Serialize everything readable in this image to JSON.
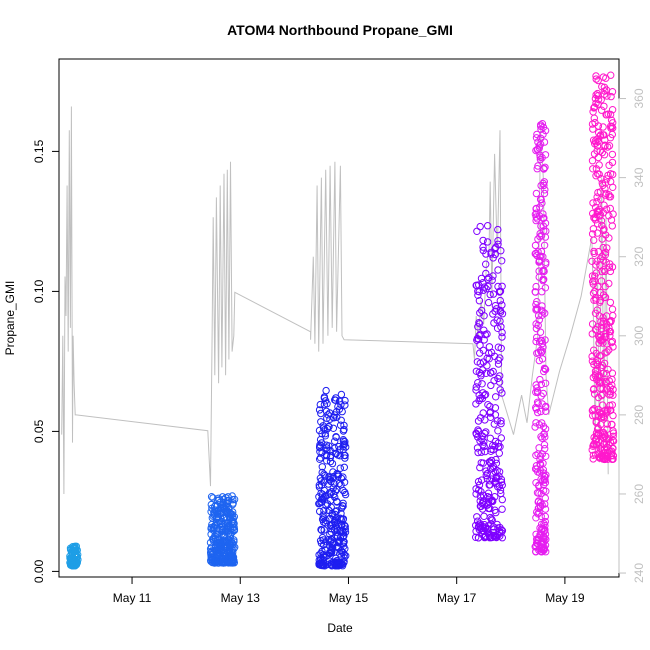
{
  "chart_data": {
    "type": "scatter",
    "title": "ATOM4 Northbound Propane_GMI",
    "xlabel": "Date",
    "ylabel": "Propane_GMI",
    "x_axis": {
      "ticks": [
        {
          "value": 11,
          "label": "May 11"
        },
        {
          "value": 13,
          "label": "May 13"
        },
        {
          "value": 15,
          "label": "May 15"
        },
        {
          "value": 17,
          "label": "May 17"
        },
        {
          "value": 19,
          "label": "May 19"
        }
      ],
      "range": [
        9.65,
        20.0
      ]
    },
    "y_left": {
      "ticks": [
        {
          "value": 0.0,
          "label": "0.00"
        },
        {
          "value": 0.05,
          "label": "0.05"
        },
        {
          "value": 0.1,
          "label": "0.10"
        },
        {
          "value": 0.15,
          "label": "0.15"
        }
      ],
      "range": [
        -0.002,
        0.183
      ]
    },
    "y_right": {
      "ticks": [
        {
          "value": 240,
          "label": "240"
        },
        {
          "value": 260,
          "label": "260"
        },
        {
          "value": 280,
          "label": "280"
        },
        {
          "value": 300,
          "label": "300"
        },
        {
          "value": 320,
          "label": "320"
        },
        {
          "value": 340,
          "label": "340"
        },
        {
          "value": 360,
          "label": "360"
        }
      ],
      "range": [
        239,
        370
      ],
      "color": "#c0c0c0"
    },
    "point_series": [
      {
        "color": "#1e9ee6",
        "x_start": 9.85,
        "x_end": 10.0,
        "y_min": 0.002,
        "y_max": 0.009,
        "count": 90
      },
      {
        "color": "#1e64f0",
        "x_start": 12.45,
        "x_end": 12.9,
        "y_min": 0.003,
        "y_max": 0.027,
        "count": 300
      },
      {
        "color": "#1e1ef0",
        "x_start": 14.45,
        "x_end": 14.95,
        "y_min": 0.002,
        "y_max": 0.065,
        "count": 320
      },
      {
        "color": "#7f00ff",
        "x_start": 17.35,
        "x_end": 17.85,
        "y_min": 0.012,
        "y_max": 0.124,
        "count": 300
      },
      {
        "color": "#e51ef0",
        "x_start": 18.45,
        "x_end": 18.65,
        "y_min": 0.007,
        "y_max": 0.16,
        "count": 260
      },
      {
        "color": "#ff18cc",
        "x_start": 19.5,
        "x_end": 19.9,
        "y_min": 0.04,
        "y_max": 0.178,
        "count": 380
      }
    ],
    "line_series": {
      "color": "#c0c0c0",
      "axis": "right",
      "points": [
        [
          9.7,
          275
        ],
        [
          9.72,
          300
        ],
        [
          9.74,
          260
        ],
        [
          9.76,
          315
        ],
        [
          9.78,
          305
        ],
        [
          9.8,
          338
        ],
        [
          9.82,
          296
        ],
        [
          9.84,
          352
        ],
        [
          9.86,
          302
        ],
        [
          9.88,
          358
        ],
        [
          9.9,
          273
        ],
        [
          9.91,
          300
        ],
        [
          9.93,
          288
        ],
        [
          9.95,
          280
        ],
        [
          9.97,
          280
        ],
        [
          12.4,
          276
        ],
        [
          12.45,
          262
        ],
        [
          12.48,
          300
        ],
        [
          12.5,
          330
        ],
        [
          12.53,
          290
        ],
        [
          12.56,
          335
        ],
        [
          12.6,
          288
        ],
        [
          12.63,
          338
        ],
        [
          12.66,
          292
        ],
        [
          12.7,
          341
        ],
        [
          12.73,
          290
        ],
        [
          12.76,
          342
        ],
        [
          12.79,
          294
        ],
        [
          12.82,
          344
        ],
        [
          12.85,
          296
        ],
        [
          12.88,
          300
        ],
        [
          12.9,
          311
        ],
        [
          14.3,
          301
        ],
        [
          14.3,
          299
        ],
        [
          14.35,
          320
        ],
        [
          14.38,
          298
        ],
        [
          14.42,
          338
        ],
        [
          14.45,
          296
        ],
        [
          14.5,
          340
        ],
        [
          14.53,
          298
        ],
        [
          14.58,
          342
        ],
        [
          14.62,
          300
        ],
        [
          14.66,
          343
        ],
        [
          14.7,
          302
        ],
        [
          14.75,
          344
        ],
        [
          14.78,
          301
        ],
        [
          14.85,
          343
        ],
        [
          14.88,
          300
        ],
        [
          14.92,
          299
        ],
        [
          17.3,
          298
        ],
        [
          17.33,
          294
        ],
        [
          17.36,
          305
        ],
        [
          17.4,
          299
        ],
        [
          17.45,
          309
        ],
        [
          17.5,
          303
        ],
        [
          17.55,
          318
        ],
        [
          17.6,
          322
        ],
        [
          17.62,
          339
        ],
        [
          17.65,
          310
        ],
        [
          17.7,
          346
        ],
        [
          17.75,
          320
        ],
        [
          17.8,
          352
        ],
        [
          17.83,
          285
        ],
        [
          18.05,
          275
        ],
        [
          18.2,
          285
        ],
        [
          18.3,
          278
        ],
        [
          18.4,
          290
        ],
        [
          18.5,
          300
        ],
        [
          18.55,
          352
        ],
        [
          18.6,
          340
        ],
        [
          18.65,
          290
        ],
        [
          18.7,
          280
        ],
        [
          18.9,
          291
        ],
        [
          19.1,
          300
        ],
        [
          19.3,
          310
        ],
        [
          19.5,
          325
        ],
        [
          19.52,
          312
        ],
        [
          19.56,
          272
        ],
        [
          19.6,
          320
        ],
        [
          19.64,
          268
        ],
        [
          19.68,
          340
        ],
        [
          19.72,
          278
        ],
        [
          19.76,
          330
        ],
        [
          19.8,
          265
        ]
      ]
    }
  }
}
